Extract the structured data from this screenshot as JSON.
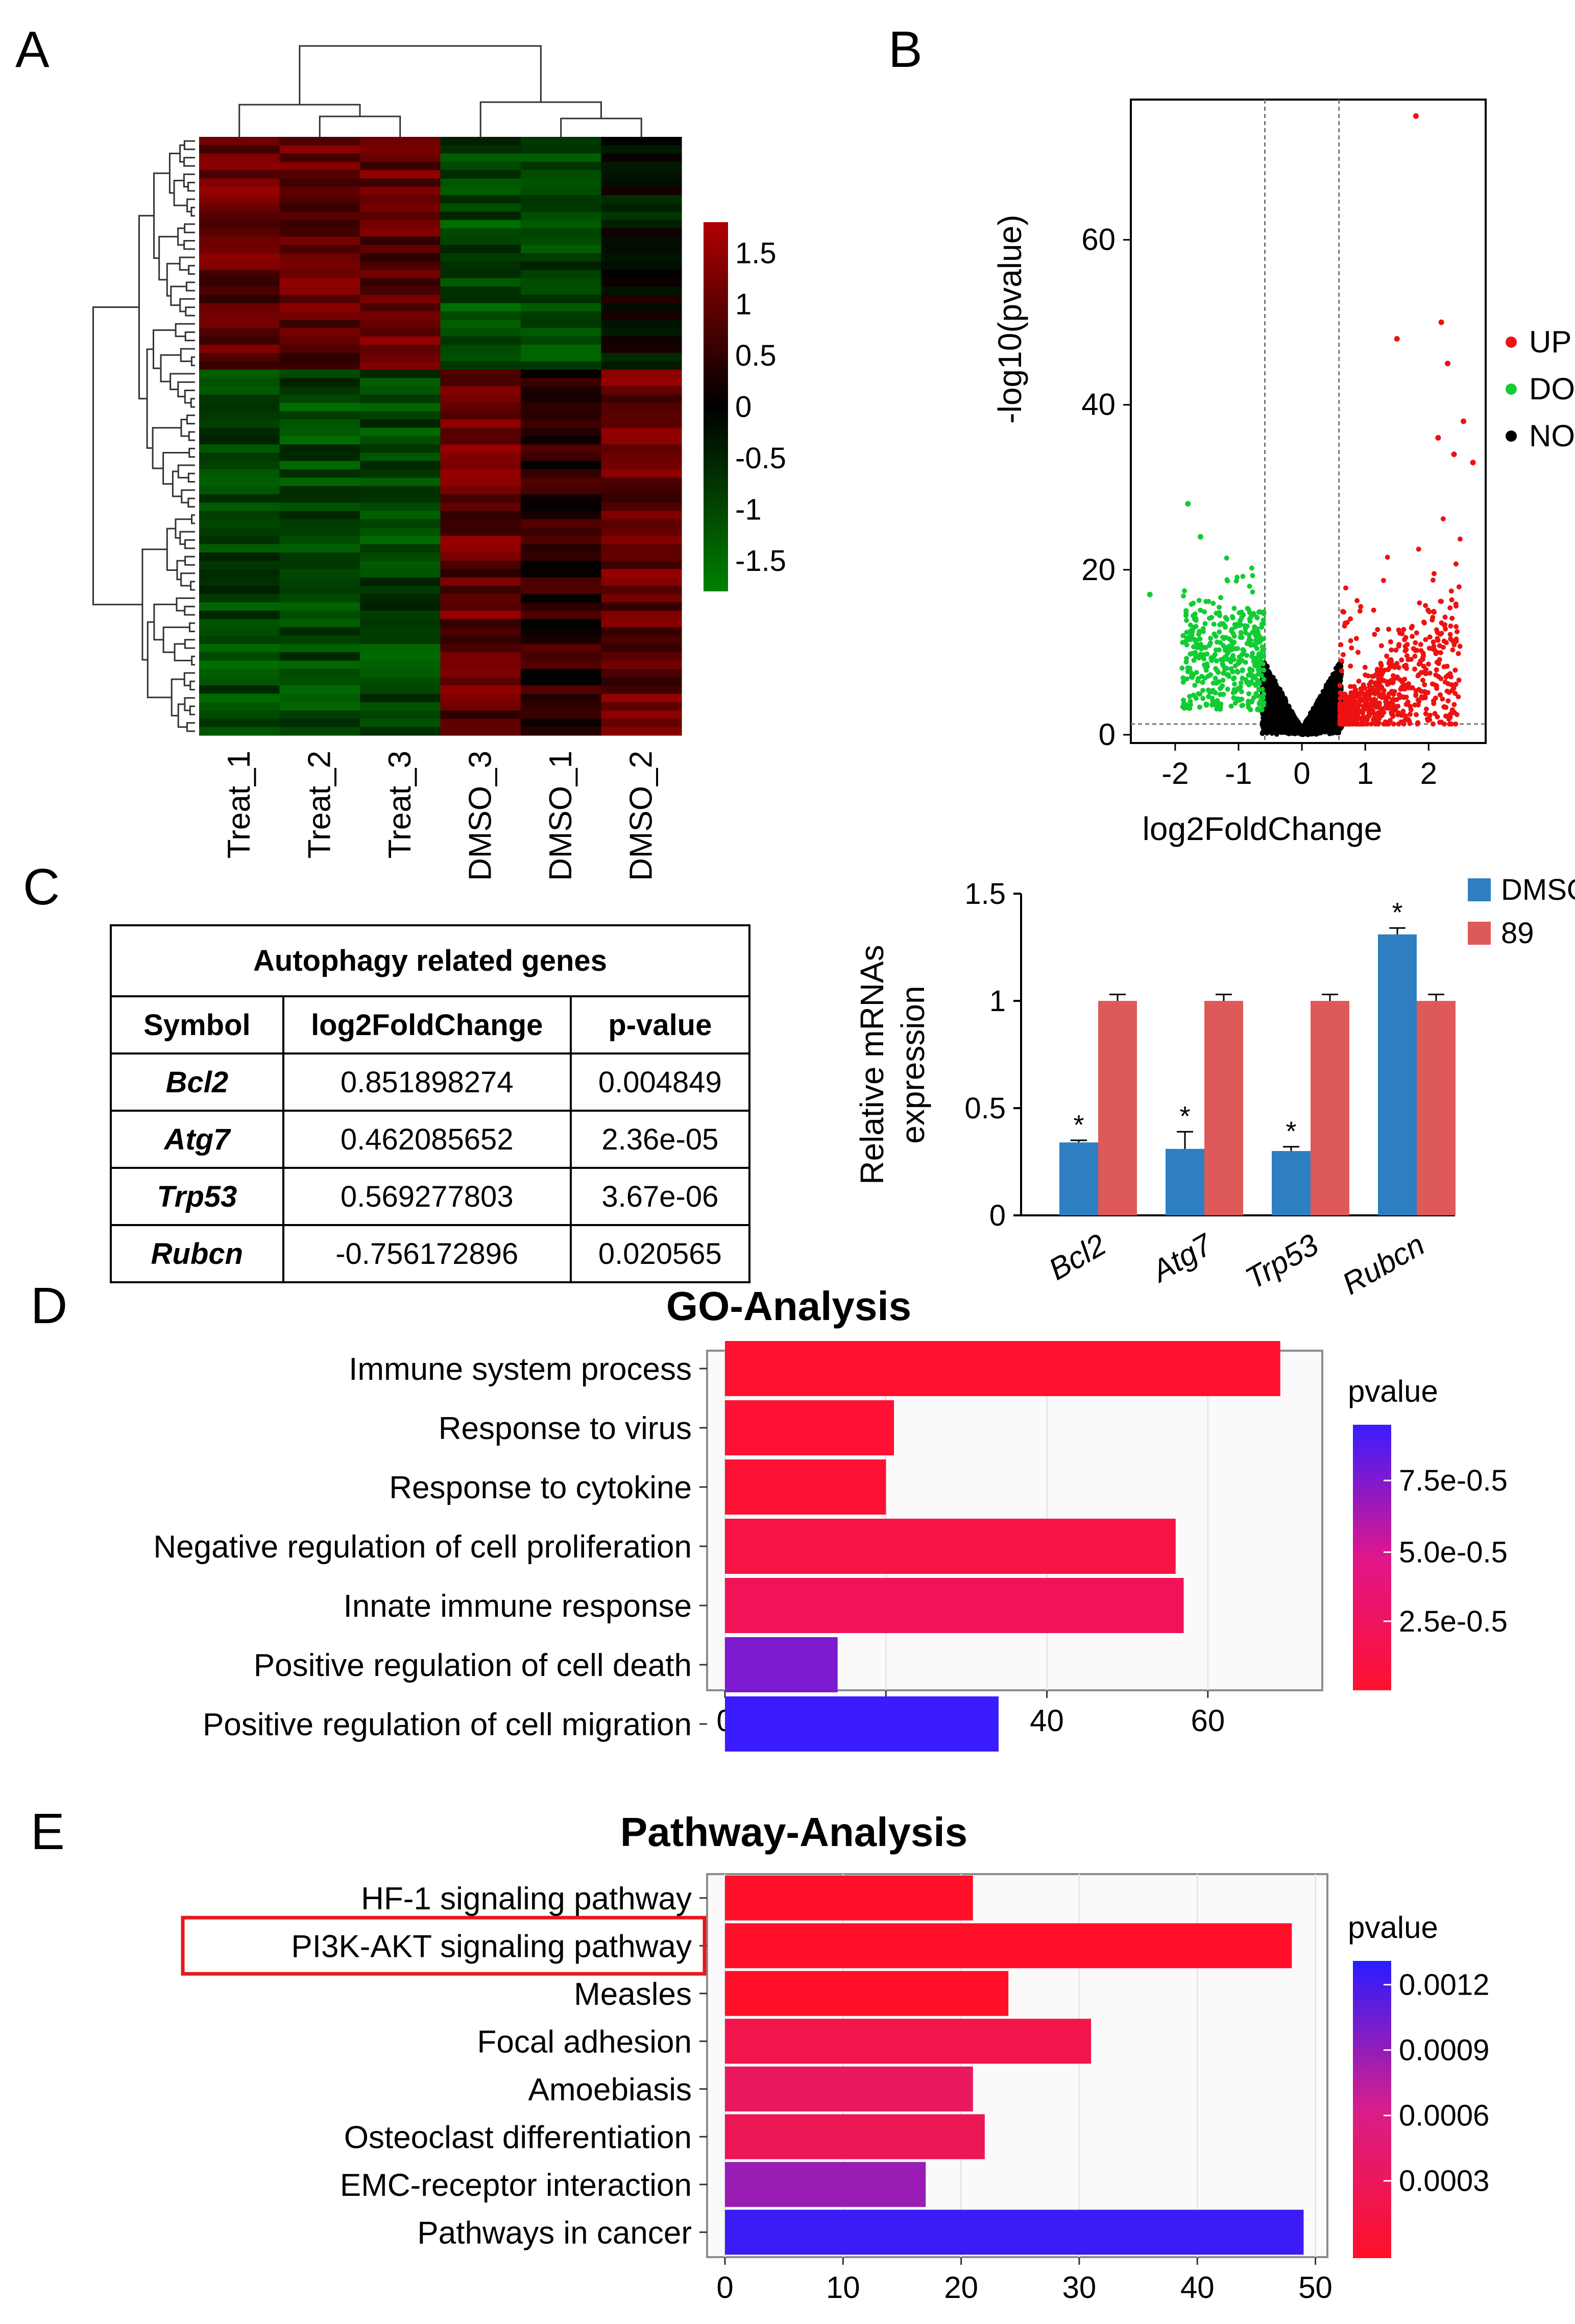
{
  "panels": {
    "a": "A",
    "b": "B",
    "c": "C",
    "d": "D",
    "e": "E"
  },
  "heatmap": {
    "samples": [
      "Treat_1",
      "Treat_2",
      "Treat_3",
      "DMSO_3",
      "DMSO_1",
      "DMSO_2"
    ],
    "color_scale": {
      "ticks": [
        "1.5",
        "1",
        "0.5",
        "0",
        "-0.5",
        "-1",
        "-1.5"
      ],
      "high_color": "#b00000",
      "mid_color": "#000000",
      "low_color": "#008000"
    }
  },
  "table": {
    "caption": "Autophagy related genes",
    "headers": [
      "Symbol",
      "log2FoldChange",
      "p-value"
    ],
    "rows": [
      [
        "Bcl2",
        "0.851898274",
        "0.004849"
      ],
      [
        "Atg7",
        "0.462085652",
        "2.36e-05"
      ],
      [
        "Trp53",
        "0.569277803",
        "3.67e-06"
      ],
      [
        "Rubcn",
        "-0.756172896",
        "0.020565"
      ]
    ]
  },
  "chart_data": [
    {
      "type": "scatter",
      "subtype": "volcano",
      "xlabel": "log2FoldChange",
      "ylabel": "-log10(pvalue)",
      "xlim": [
        -2.7,
        2.9
      ],
      "ylim": [
        -1,
        77
      ],
      "x_ticks": [
        "-2",
        "-1",
        "0",
        "1",
        "2"
      ],
      "y_ticks": [
        "0",
        "20",
        "40",
        "60"
      ],
      "thresholds": {
        "x": [
          -0.585,
          0.585
        ],
        "y": 1.3
      },
      "legend": [
        {
          "label": "UP",
          "color": "#ee1111"
        },
        {
          "label": "DOWN",
          "color": "#11cc33"
        },
        {
          "label": "NOT",
          "color": "#000000"
        }
      ],
      "highlighted_points": [
        {
          "x": 1.8,
          "y": 75
        },
        {
          "x": 2.2,
          "y": 50
        },
        {
          "x": 1.5,
          "y": 48
        },
        {
          "x": 2.3,
          "y": 45
        },
        {
          "x": 2.55,
          "y": 38
        },
        {
          "x": 2.4,
          "y": 34
        },
        {
          "x": 2.7,
          "y": 33
        },
        {
          "x": 2.15,
          "y": 36
        },
        {
          "x": -2.4,
          "y": 17
        },
        {
          "x": -1.8,
          "y": 28
        },
        {
          "x": -1.6,
          "y": 24
        }
      ]
    },
    {
      "type": "bar",
      "categories": [
        "Bcl2",
        "Atg7",
        "Trp53",
        "Rubcn"
      ],
      "series": [
        {
          "name": "DMSO",
          "values": [
            0.34,
            0.31,
            0.3,
            1.31
          ],
          "errors": [
            0.01,
            0.08,
            0.02,
            0.03
          ],
          "color": "#2e7fc1"
        },
        {
          "name": "89",
          "values": [
            1.0,
            1.0,
            1.0,
            1.0
          ],
          "errors": [
            0.03,
            0.03,
            0.03,
            0.03
          ],
          "color": "#de5a58"
        }
      ],
      "ylabel": "Relative mRNAs expression",
      "ylim": [
        0,
        1.5
      ],
      "y_ticks": [
        "0",
        "0.5",
        "1",
        "1.5"
      ],
      "significance": [
        "*",
        "*",
        "*",
        "*"
      ]
    },
    {
      "type": "bar",
      "orientation": "horizontal",
      "title": "GO-Analysis",
      "categories": [
        "Immune system process",
        "Response to virus",
        "Response to cytokine",
        "Negative regulation of cell proliferation",
        "Innate immune response",
        "Positive regulation of cell death",
        "Positive regulation of cell migration"
      ],
      "values": [
        69,
        21,
        20,
        56,
        57,
        14,
        34
      ],
      "pvalues": [
        2e-07,
        2e-06,
        3e-06,
        1.2e-05,
        2.2e-05,
        8e-05,
        0.0001
      ],
      "xlim": [
        0,
        72
      ],
      "x_ticks": [
        "0",
        "20",
        "40",
        "60"
      ],
      "legend_title": "pvalue",
      "legend_ticks": [
        "7.5e-0.5",
        "5.0e-0.5",
        "2.5e-0.5"
      ],
      "legend_range": [
        0,
        0.0001
      ]
    },
    {
      "type": "bar",
      "orientation": "horizontal",
      "title": "Pathway-Analysis",
      "categories": [
        "HF-1 signaling pathway",
        "PI3K-AKT signaling pathway",
        "Measles",
        "Focal adhesion",
        "Amoebiasis",
        "Osteoclast differentiation",
        "EMC-receptor interaction",
        "Pathways in cancer"
      ],
      "values": [
        21,
        48,
        24,
        31,
        21,
        22,
        17,
        49
      ],
      "pvalues": [
        1e-05,
        2e-05,
        0.0001,
        0.00035,
        0.00045,
        0.0004,
        0.0009,
        0.0012
      ],
      "highlighted_category": "PI3K-AKT signaling pathway",
      "highlight_color": "#e41a1c",
      "xlim": [
        0,
        49.5
      ],
      "x_ticks": [
        "0",
        "10",
        "20",
        "30",
        "40",
        "50"
      ],
      "legend_title": "pvalue",
      "legend_ticks": [
        "0.0012",
        "0.0009",
        "0.0006",
        "0.0003"
      ],
      "legend_range": [
        0.00015,
        0.00125
      ]
    }
  ]
}
